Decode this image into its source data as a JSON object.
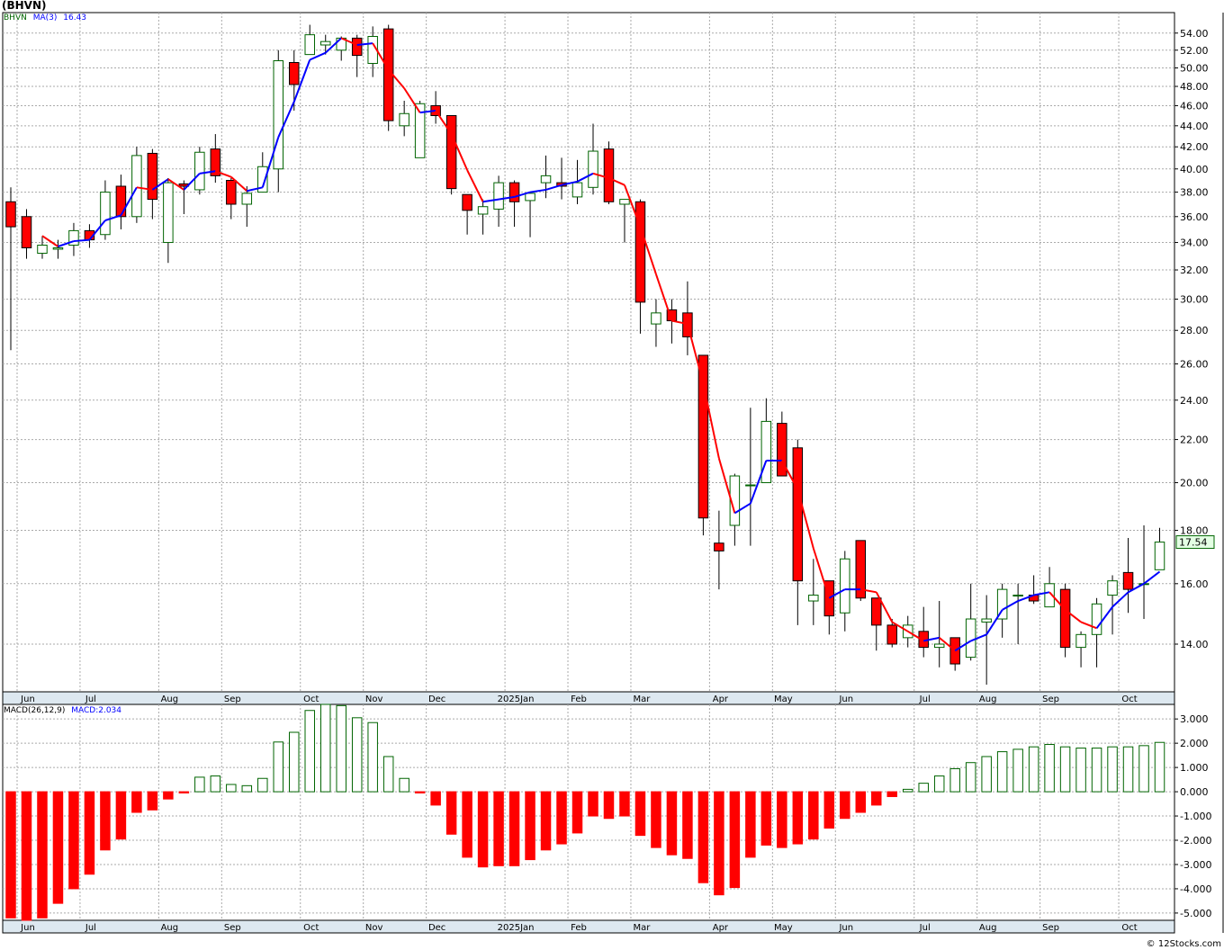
{
  "symbol_title": "(BHVN)",
  "price_legend": {
    "symbol": "BHVN",
    "ma_label": "MA(3)",
    "ma_value": "16.43"
  },
  "macd_legend": {
    "label": "MACD(26,12,9)",
    "value": "MACD:2.034"
  },
  "last_price_label": "17.54",
  "watermark": "© 12Stocks.com",
  "colors": {
    "up": "#ffffff",
    "down": "#ff0000",
    "ma_up": "#0000ff",
    "ma_down": "#ff0000",
    "macd_pos": "#006400",
    "macd_neg": "#ff0000",
    "grid": "#aaaaaa",
    "axis_band": "#dde8f0",
    "last_price_box": "#e4ffe4"
  },
  "chart_data": [
    {
      "type": "candlestick",
      "title": "(BHVN)",
      "y_scale": "log",
      "ylim": [
        12.6,
        56.5
      ],
      "y_ticks": [
        14,
        16,
        18,
        20,
        22,
        24,
        26,
        28,
        30,
        32,
        34,
        36,
        38,
        40,
        42,
        44,
        46,
        48,
        50,
        52,
        54
      ],
      "y_tick_labels": [
        "14.00",
        "16.00",
        "18.00",
        "20.00",
        "22.00",
        "24.00",
        "26.00",
        "28.00",
        "30.00",
        "32.00",
        "34.00",
        "36.00",
        "38.00",
        "40.00",
        "42.00",
        "44.00",
        "46.00",
        "48.00",
        "50.00",
        "52.00",
        "54.00"
      ],
      "x_month_labels": [
        {
          "label": "Jun",
          "week": 1
        },
        {
          "label": "Jul",
          "week": 5
        },
        {
          "label": "Aug",
          "week": 10
        },
        {
          "label": "Sep",
          "week": 14
        },
        {
          "label": "Oct",
          "week": 19
        },
        {
          "label": "Nov",
          "week": 23
        },
        {
          "label": "Dec",
          "week": 27
        },
        {
          "label": "2025Jan",
          "week": 32
        },
        {
          "label": "Feb",
          "week": 36
        },
        {
          "label": "Mar",
          "week": 40
        },
        {
          "label": "Apr",
          "week": 45
        },
        {
          "label": "May",
          "week": 49
        },
        {
          "label": "Jun",
          "week": 53
        },
        {
          "label": "Jul",
          "week": 58
        },
        {
          "label": "Aug",
          "week": 62
        },
        {
          "label": "Sep",
          "week": 66
        },
        {
          "label": "Oct",
          "week": 71
        }
      ],
      "ohlc": [
        [
          37.2,
          38.4,
          26.8,
          35.2
        ],
        [
          36.0,
          36.6,
          32.8,
          33.6
        ],
        [
          33.2,
          34.5,
          32.8,
          33.8
        ],
        [
          33.5,
          34.2,
          32.8,
          33.6
        ],
        [
          33.8,
          35.5,
          33.0,
          34.9
        ],
        [
          34.9,
          35.4,
          33.6,
          34.2
        ],
        [
          34.6,
          39.0,
          34.2,
          38.0
        ],
        [
          38.5,
          39.5,
          35.0,
          36.0
        ],
        [
          36.0,
          42.0,
          35.5,
          41.2
        ],
        [
          41.4,
          41.8,
          35.8,
          37.4
        ],
        [
          34.0,
          39.2,
          32.5,
          38.8
        ],
        [
          38.7,
          39.0,
          36.2,
          38.5
        ],
        [
          38.2,
          42.0,
          37.8,
          41.5
        ],
        [
          41.8,
          43.2,
          38.8,
          39.4
        ],
        [
          39.0,
          39.2,
          35.8,
          37.0
        ],
        [
          37.0,
          38.5,
          35.2,
          37.9
        ],
        [
          38.0,
          41.5,
          38.0,
          40.2
        ],
        [
          40.0,
          52.0,
          38.0,
          50.8
        ],
        [
          50.6,
          52.0,
          45.5,
          48.2
        ],
        [
          51.5,
          55.0,
          51.5,
          53.8
        ],
        [
          52.6,
          53.8,
          51.5,
          53.0
        ],
        [
          52.0,
          53.6,
          50.8,
          53.4
        ],
        [
          53.4,
          53.8,
          49.0,
          51.4
        ],
        [
          50.5,
          54.8,
          49.0,
          53.6
        ],
        [
          54.5,
          55.0,
          43.5,
          44.5
        ],
        [
          44.0,
          46.5,
          43.0,
          45.2
        ],
        [
          41.0,
          46.5,
          41.0,
          46.2
        ],
        [
          46.0,
          47.5,
          44.2,
          45.0
        ],
        [
          45.0,
          45.0,
          37.8,
          38.3
        ],
        [
          37.8,
          37.8,
          34.6,
          36.5
        ],
        [
          36.2,
          37.4,
          34.6,
          36.8
        ],
        [
          36.6,
          39.4,
          35.2,
          38.8
        ],
        [
          38.8,
          39.0,
          35.2,
          37.2
        ],
        [
          37.3,
          38.0,
          34.4,
          37.9
        ],
        [
          38.8,
          41.2,
          37.5,
          39.4
        ],
        [
          38.8,
          41.0,
          37.4,
          38.5
        ],
        [
          37.6,
          40.8,
          37.0,
          38.8
        ],
        [
          38.4,
          44.2,
          37.8,
          41.6
        ],
        [
          41.8,
          42.5,
          37.0,
          37.2
        ],
        [
          37.0,
          37.2,
          34.0,
          37.4
        ],
        [
          37.2,
          37.4,
          27.8,
          29.8
        ],
        [
          28.4,
          30.0,
          27.0,
          29.1
        ],
        [
          29.3,
          30.0,
          27.2,
          28.6
        ],
        [
          29.1,
          31.2,
          26.5,
          27.6
        ],
        [
          26.5,
          26.5,
          17.8,
          18.5
        ],
        [
          17.5,
          18.8,
          15.8,
          17.2
        ],
        [
          18.2,
          20.4,
          17.4,
          20.3
        ],
        [
          19.9,
          23.6,
          17.4,
          19.9
        ],
        [
          20.0,
          24.1,
          20.0,
          22.9
        ],
        [
          22.8,
          23.4,
          20.4,
          20.3
        ],
        [
          21.6,
          22.0,
          14.6,
          16.1
        ],
        [
          15.4,
          16.9,
          14.6,
          15.6
        ],
        [
          16.1,
          16.1,
          14.3,
          14.9
        ],
        [
          15.0,
          17.2,
          14.4,
          16.9
        ],
        [
          17.6,
          17.6,
          15.4,
          15.5
        ],
        [
          15.5,
          15.5,
          13.8,
          14.6
        ],
        [
          14.6,
          14.8,
          13.9,
          14.0
        ],
        [
          14.2,
          14.9,
          13.9,
          14.6
        ],
        [
          14.4,
          15.2,
          13.6,
          13.9
        ],
        [
          13.9,
          15.4,
          13.3,
          14.0
        ],
        [
          14.2,
          14.2,
          13.2,
          13.4
        ],
        [
          13.6,
          16.0,
          13.5,
          14.8
        ],
        [
          14.7,
          15.6,
          12.8,
          14.8
        ],
        [
          14.8,
          16.0,
          14.2,
          15.8
        ],
        [
          15.6,
          16.0,
          14.0,
          15.6
        ],
        [
          15.6,
          16.3,
          15.3,
          15.4
        ],
        [
          15.2,
          16.6,
          15.2,
          16.0
        ],
        [
          15.8,
          16.0,
          13.6,
          13.9
        ],
        [
          13.9,
          14.4,
          13.3,
          14.3
        ],
        [
          14.3,
          15.5,
          13.3,
          15.3
        ],
        [
          15.6,
          16.3,
          14.3,
          16.1
        ],
        [
          16.4,
          17.7,
          15.0,
          15.8
        ],
        [
          16.0,
          18.2,
          14.8,
          16.0
        ],
        [
          16.5,
          18.1,
          16.5,
          17.54
        ]
      ],
      "ma3": [
        null,
        null,
        34.5,
        33.7,
        34.1,
        34.2,
        35.7,
        36.1,
        38.4,
        38.2,
        39.1,
        38.2,
        39.6,
        39.8,
        39.3,
        38.1,
        38.4,
        42.9,
        46.4,
        50.9,
        51.7,
        53.4,
        52.6,
        52.8,
        49.8,
        47.8,
        45.3,
        45.5,
        43.2,
        39.9,
        37.2,
        37.4,
        37.6,
        38.0,
        38.2,
        38.6,
        38.9,
        39.6,
        39.2,
        38.6,
        35.2,
        31.7,
        28.6,
        28.4,
        24.9,
        21.1,
        18.7,
        19.1,
        21.0,
        21.0,
        19.7,
        17.3,
        15.5,
        15.8,
        15.8,
        15.7,
        14.7,
        14.4,
        14.1,
        14.2,
        13.8,
        14.1,
        14.3,
        15.1,
        15.4,
        15.6,
        15.7,
        15.1,
        14.7,
        14.5,
        15.2,
        15.7,
        16.0,
        16.43
      ],
      "ma_legend": "MA(3) 16.43"
    },
    {
      "type": "bar",
      "title": "MACD(26,12,9)",
      "ylim": [
        -5.3,
        3.6
      ],
      "y_ticks": [
        -5,
        -4,
        -3,
        -2,
        -1,
        0,
        1,
        2,
        3
      ],
      "y_tick_labels": [
        "-5.000",
        "-4.000",
        "-3.000",
        "-2.000",
        "-1.000",
        "0.000",
        "1.000",
        "2.000",
        "3.000"
      ],
      "values": [
        -5.2,
        -5.3,
        -5.2,
        -4.6,
        -4.0,
        -3.4,
        -2.4,
        -1.95,
        -0.85,
        -0.75,
        -0.3,
        -0.05,
        0.6,
        0.65,
        0.3,
        0.25,
        0.55,
        2.05,
        2.45,
        3.35,
        3.6,
        3.55,
        3.05,
        2.85,
        1.45,
        0.55,
        -0.05,
        -0.55,
        -1.75,
        -2.7,
        -3.1,
        -3.05,
        -3.05,
        -2.8,
        -2.4,
        -2.15,
        -1.7,
        -1.0,
        -1.1,
        -1.0,
        -1.8,
        -2.3,
        -2.6,
        -2.75,
        -3.75,
        -4.25,
        -3.95,
        -2.7,
        -2.2,
        -2.3,
        -2.15,
        -1.95,
        -1.5,
        -1.1,
        -0.85,
        -0.55,
        -0.2,
        0.1,
        0.35,
        0.65,
        0.95,
        1.2,
        1.45,
        1.65,
        1.75,
        1.85,
        1.95,
        1.85,
        1.8,
        1.8,
        1.85,
        1.85,
        1.9,
        2.034
      ]
    }
  ]
}
